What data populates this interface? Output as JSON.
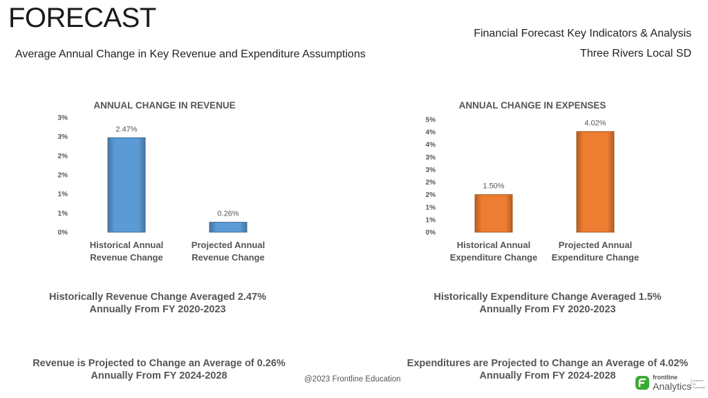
{
  "header": {
    "title": "FORECAST",
    "report_title": "Financial Forecast Key Indicators & Analysis",
    "district": "Three Rivers Local SD",
    "subtitle": "Average Annual Change in Key Revenue and Expenditure Assumptions"
  },
  "colors": {
    "revenue_bar": "#5b9bd5",
    "expense_bar": "#ed7d31",
    "brand_green": "#3aaa35"
  },
  "chart_data": [
    {
      "type": "bar",
      "title": "ANNUAL CHANGE IN REVENUE",
      "categories": [
        "Historical Annual\nRevenue Change",
        "Projected Annual\nRevenue Change"
      ],
      "category_lines": [
        [
          "Historical Annual",
          "Revenue Change"
        ],
        [
          "Projected Annual",
          "Revenue Change"
        ]
      ],
      "values": [
        2.47,
        0.26
      ],
      "data_labels": [
        "2.47%",
        "0.26%"
      ],
      "ylim": [
        0,
        3
      ],
      "ytick_values": [
        0,
        0.5,
        1,
        1.5,
        2,
        2.5,
        3
      ],
      "ytick_labels": [
        "0%",
        "1%",
        "1%",
        "2%",
        "2%",
        "3%",
        "3%"
      ],
      "xlabel": "",
      "ylabel": "",
      "color_key": "revenue_bar"
    },
    {
      "type": "bar",
      "title": "ANNUAL CHANGE IN EXPENSES",
      "categories": [
        "Historical Annual\nExpenditure Change",
        "Projected Annual\nExpenditure Change"
      ],
      "category_lines": [
        [
          "Historical Annual",
          "Expenditure Change"
        ],
        [
          "Projected Annual",
          "Expenditure Change"
        ]
      ],
      "values": [
        1.5,
        4.02
      ],
      "data_labels": [
        "1.50%",
        "4.02%"
      ],
      "ylim": [
        0,
        4.5
      ],
      "ytick_values": [
        0,
        0.5,
        1,
        1.5,
        2,
        2.5,
        3,
        3.5,
        4,
        4.5
      ],
      "ytick_labels": [
        "0%",
        "1%",
        "1%",
        "2%",
        "2%",
        "3%",
        "3%",
        "4%",
        "4%",
        "5%"
      ],
      "xlabel": "",
      "ylabel": "",
      "color_key": "expense_bar"
    }
  ],
  "notes": {
    "revenue_historical": [
      "Historically Revenue Change Averaged 2.47%",
      "Annually From FY 2020-2023"
    ],
    "expense_historical": [
      "Historically Expenditure Change Averaged 1.5%",
      "Annually From FY 2020-2023"
    ],
    "revenue_projected": [
      "Revenue is Projected to Change an Average of 0.26%",
      "Annually From FY 2024-2028"
    ],
    "expense_projected": [
      "Expenditures are Projected to Change an Average of 4.02%",
      "Annually From FY 2024-2028"
    ]
  },
  "footer": {
    "copyright": "@2023 Frontline Education",
    "brand_top": "frontline",
    "brand_main": "Analytics",
    "brand_tag": "powered by Forecast5"
  }
}
